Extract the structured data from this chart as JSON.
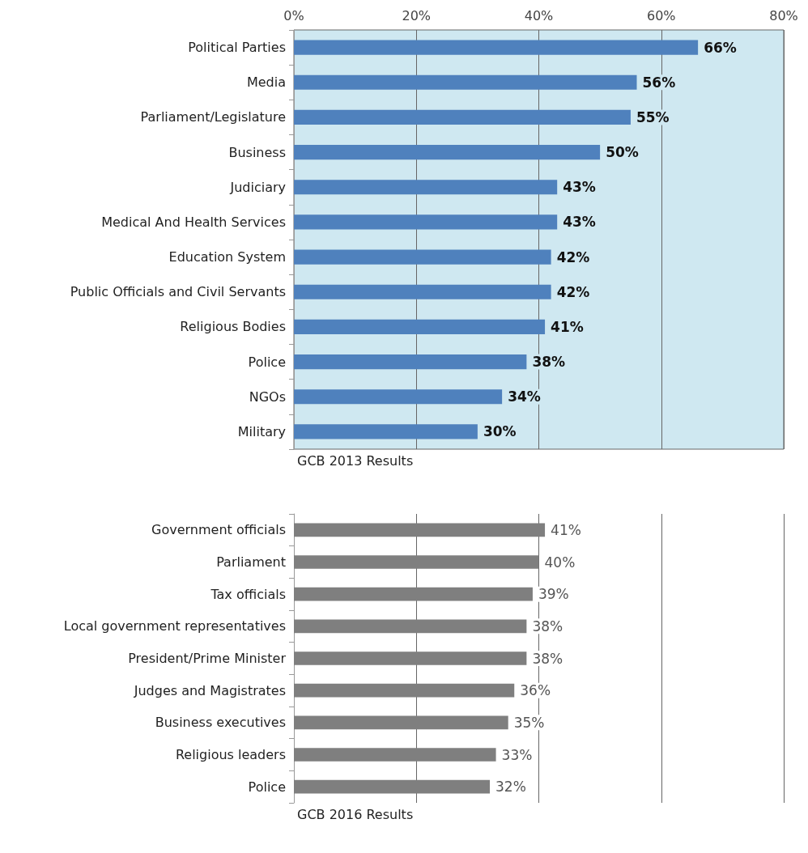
{
  "chart_data": [
    {
      "type": "bar",
      "orientation": "horizontal",
      "categories": [
        "Political Parties",
        "Media",
        "Parliament/Legislature",
        "Business",
        "Judiciary",
        "Medical And Health Services",
        "Education System",
        "Public Officials and Civil Servants",
        "Religious Bodies",
        "Police",
        "NGOs",
        "Military"
      ],
      "values": [
        66,
        56,
        55,
        50,
        43,
        43,
        42,
        42,
        41,
        38,
        34,
        30
      ],
      "value_labels": [
        "66%",
        "56%",
        "55%",
        "50%",
        "43%",
        "43%",
        "42%",
        "42%",
        "41%",
        "38%",
        "34%",
        "30%"
      ],
      "color": "#4f81bd",
      "xlim": [
        0,
        80
      ],
      "xticks": [
        {
          "value": 0,
          "label": "0%"
        },
        {
          "value": 20,
          "label": "20%"
        },
        {
          "value": 40,
          "label": "40%"
        },
        {
          "value": 60,
          "label": "60%"
        },
        {
          "value": 80,
          "label": "80%"
        }
      ],
      "grid": "x",
      "annotations": [
        "GCB 2013 Results"
      ]
    },
    {
      "type": "bar",
      "orientation": "horizontal",
      "categories": [
        "Government officials",
        "Parliament",
        "Tax officials",
        "Local government representatives",
        "President/Prime Minister",
        "Judges and Magistrates",
        "Business executives",
        "Religious leaders",
        "Police"
      ],
      "values": [
        41,
        40,
        39,
        38,
        38,
        36,
        35,
        33,
        32
      ],
      "value_labels": [
        "41%",
        "40%",
        "39%",
        "38%",
        "38%",
        "36%",
        "35%",
        "33%",
        "32%"
      ],
      "color": "#7f7f7f",
      "xlim": [
        0,
        80
      ],
      "xticks": [
        {
          "value": 0,
          "label": null
        },
        {
          "value": 20,
          "label": null
        },
        {
          "value": 40,
          "label": null
        },
        {
          "value": 60,
          "label": null
        },
        {
          "value": 80,
          "label": null
        }
      ],
      "grid": "x",
      "tick_labels": "y",
      "annotations": [
        "GCB 2016 Results"
      ]
    }
  ]
}
